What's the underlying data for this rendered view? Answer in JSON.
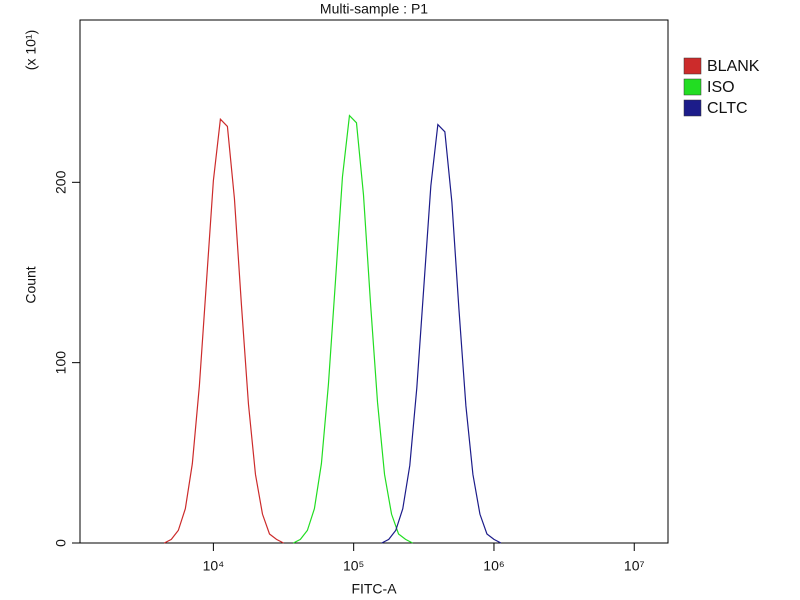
{
  "chart_data": {
    "type": "line",
    "title": "Multi-sample : P1",
    "x_label": "FITC-A",
    "y_label": "Count",
    "y_multiplier": "(x 10¹)",
    "x_scale": "log",
    "xlim": [
      1120,
      17400000
    ],
    "xticks": [
      {
        "value": 10000,
        "label": "10⁴"
      },
      {
        "value": 100000,
        "label": "10⁵"
      },
      {
        "value": 1000000,
        "label": "10⁶"
      },
      {
        "value": 10000000,
        "label": "10⁷"
      }
    ],
    "ylim": [
      0,
      290
    ],
    "yticks": [
      0,
      100,
      200
    ],
    "legend_position": "right",
    "series": [
      {
        "name": "BLANK",
        "color": "#cc2b2b",
        "x": [
          4467,
          5012,
          5623,
          6310,
          7079,
          7943,
          8913,
          10000,
          11220,
          12589,
          14125,
          15849,
          17783,
          19953,
          22387,
          25119,
          28184,
          31623
        ],
        "values": [
          0,
          2,
          7,
          19,
          44,
          87,
          144,
          201,
          235,
          231,
          191,
          132,
          77,
          38,
          16,
          5,
          2,
          0
        ]
      },
      {
        "name": "ISO",
        "color": "#22dd22",
        "x": [
          37154,
          41687,
          46774,
          52481,
          58884,
          66069,
          74131,
          83176,
          93325,
          104713,
          117490,
          131826,
          147911,
          165959,
          186209,
          208930,
          234423,
          263027
        ],
        "values": [
          0,
          2,
          7,
          19,
          44,
          88,
          145,
          203,
          237,
          233,
          193,
          133,
          78,
          38,
          16,
          5,
          2,
          0
        ]
      },
      {
        "name": "CLTC",
        "color": "#1c1c8a",
        "x": [
          158489,
          177828,
          199526,
          223872,
          251189,
          281838,
          316228,
          354813,
          398107,
          446684,
          501187,
          562341,
          630957,
          707946,
          794328,
          891251,
          1000000,
          1122018
        ],
        "values": [
          0,
          2,
          7,
          19,
          43,
          86,
          142,
          198,
          232,
          228,
          189,
          130,
          76,
          38,
          16,
          5,
          2,
          0
        ]
      }
    ]
  }
}
